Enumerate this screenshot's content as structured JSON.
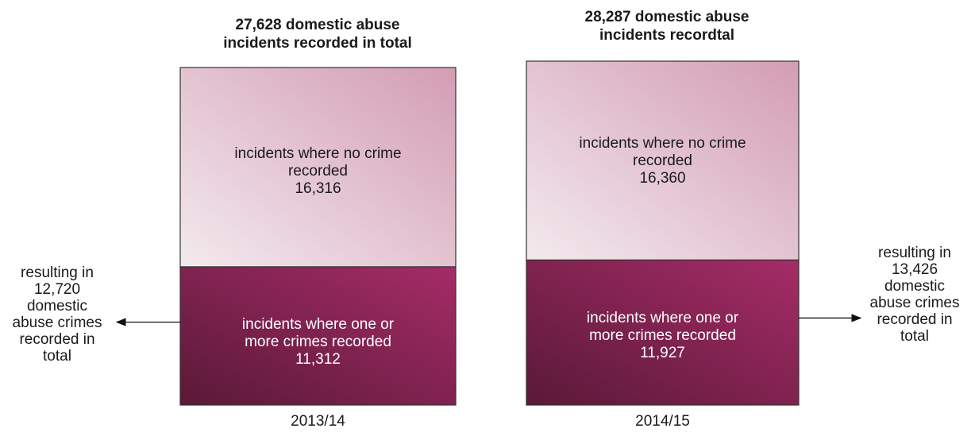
{
  "chart_data": {
    "type": "bar",
    "stacked": true,
    "categories": [
      "2013/14",
      "2014/15"
    ],
    "series": [
      {
        "label_template": "incidents where one or more crimes recorded",
        "values": [
          11312,
          11927
        ],
        "value_labels": [
          "11,312",
          "11,927"
        ],
        "color": "#8e2860"
      },
      {
        "label_template": "incidents where no crime recorded",
        "values": [
          16316,
          16360
        ],
        "value_labels": [
          "16,316",
          "16,360"
        ],
        "color": "#e0c2cf"
      }
    ],
    "bars": [
      {
        "category": "2013/14",
        "title_line1": "27,628 domestic abuse",
        "title_line2": "incidents recorded in total",
        "total": 27628,
        "top": {
          "line1": "incidents where no crime",
          "line2": "recorded",
          "value": "16,316"
        },
        "bottom": {
          "line1": "incidents where one or",
          "line2": "more crimes recorded",
          "value": "11,312"
        },
        "note": [
          "resulting in",
          "12,720",
          "domestic",
          "abuse crimes",
          "recorded in",
          "total"
        ],
        "note_value": 12720,
        "note_side": "left"
      },
      {
        "category": "2014/15",
        "title_line1": "28,287 domestic abuse",
        "title_line2": "incidents recordtal",
        "total": 28287,
        "top": {
          "line1": "incidents where no crime",
          "line2": "recorded",
          "value": "16,360"
        },
        "bottom": {
          "line1": "incidents where one or",
          "line2": "more crimes recorded",
          "value": "11,927"
        },
        "note": [
          "resulting in",
          "13,426",
          "domestic",
          "abuse crimes",
          "recorded in",
          "total"
        ],
        "note_value": 13426,
        "note_side": "right"
      }
    ],
    "colors": {
      "light_start": "#f1e6ea",
      "light_end": "#d49db3",
      "dark_start": "#5c1a3a",
      "dark_end": "#a02a64",
      "border": "#333333"
    }
  }
}
